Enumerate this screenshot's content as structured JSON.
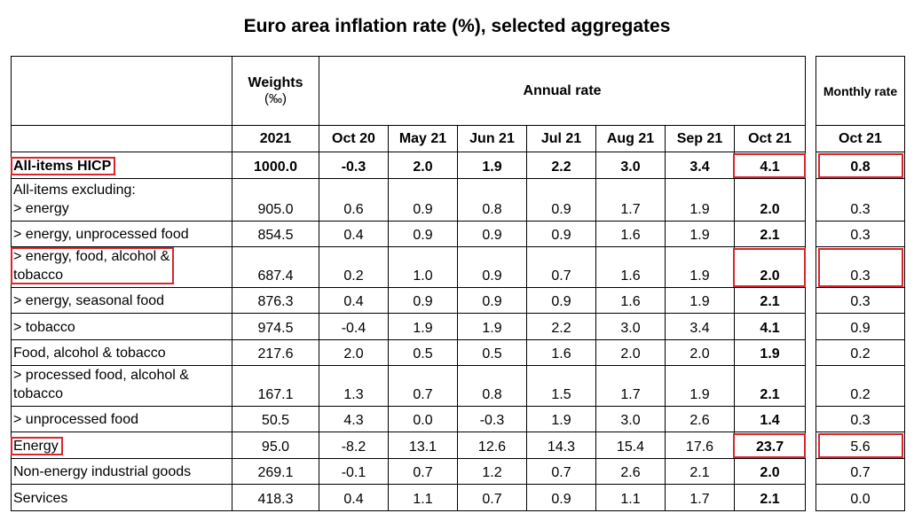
{
  "title": "Euro area inflation rate (%), selected aggregates",
  "header": {
    "weights_line1": "Weights",
    "weights_line2": "(‰)",
    "annual_rate": "Annual rate",
    "monthly_rate": "Monthly rate",
    "weights_year": "2021",
    "annual_periods": [
      "Oct 20",
      "May 21",
      "Jun 21",
      "Jul 21",
      "Aug 21",
      "Sep 21",
      "Oct 21"
    ],
    "monthly_period": "Oct 21"
  },
  "rows": [
    {
      "label_lines": [
        "All-items HICP"
      ],
      "weight": "1000.0",
      "annual": [
        "-0.3",
        "2.0",
        "1.9",
        "2.2",
        "3.0",
        "3.4",
        "4.1"
      ],
      "monthly": "0.8",
      "highlighted": true
    },
    {
      "label_lines": [
        "All-items excluding:",
        "> energy"
      ],
      "weight": "905.0",
      "annual": [
        "0.6",
        "0.9",
        "0.8",
        "0.9",
        "1.7",
        "1.9",
        "2.0"
      ],
      "monthly": "0.3"
    },
    {
      "label_lines": [
        "> energy, unprocessed food"
      ],
      "weight": "854.5",
      "annual": [
        "0.4",
        "0.9",
        "0.9",
        "0.9",
        "1.6",
        "1.9",
        "2.1"
      ],
      "monthly": "0.3"
    },
    {
      "label_lines": [
        "> energy, food, alcohol &",
        "tobacco"
      ],
      "weight": "687.4",
      "annual": [
        "0.2",
        "1.0",
        "0.9",
        "0.7",
        "1.6",
        "1.9",
        "2.0"
      ],
      "monthly": "0.3",
      "highlighted": true
    },
    {
      "label_lines": [
        "> energy, seasonal food"
      ],
      "weight": "876.3",
      "annual": [
        "0.4",
        "0.9",
        "0.9",
        "0.9",
        "1.6",
        "1.9",
        "2.1"
      ],
      "monthly": "0.3"
    },
    {
      "label_lines": [
        "> tobacco"
      ],
      "weight": "974.5",
      "annual": [
        "-0.4",
        "1.9",
        "1.9",
        "2.2",
        "3.0",
        "3.4",
        "4.1"
      ],
      "monthly": "0.9"
    },
    {
      "label_lines": [
        "Food, alcohol & tobacco"
      ],
      "weight": "217.6",
      "annual": [
        "2.0",
        "0.5",
        "0.5",
        "1.6",
        "2.0",
        "2.0",
        "1.9"
      ],
      "monthly": "0.2"
    },
    {
      "label_lines": [
        "> processed food, alcohol &",
        "tobacco"
      ],
      "weight": "167.1",
      "annual": [
        "1.3",
        "0.7",
        "0.8",
        "1.5",
        "1.7",
        "1.9",
        "2.1"
      ],
      "monthly": "0.2"
    },
    {
      "label_lines": [
        "> unprocessed food"
      ],
      "weight": "50.5",
      "annual": [
        "4.3",
        "0.0",
        "-0.3",
        "1.9",
        "3.0",
        "2.6",
        "1.4"
      ],
      "monthly": "0.3"
    },
    {
      "label_lines": [
        "Energy"
      ],
      "weight": "95.0",
      "annual": [
        "-8.2",
        "13.1",
        "12.6",
        "14.3",
        "15.4",
        "17.6",
        "23.7"
      ],
      "monthly": "5.6",
      "highlighted": true
    },
    {
      "label_lines": [
        "Non-energy industrial goods"
      ],
      "weight": "269.1",
      "annual": [
        "-0.1",
        "0.7",
        "1.2",
        "0.7",
        "2.6",
        "2.1",
        "2.0"
      ],
      "monthly": "0.7"
    },
    {
      "label_lines": [
        "Services"
      ],
      "weight": "418.3",
      "annual": [
        "0.4",
        "1.1",
        "0.7",
        "0.9",
        "1.1",
        "1.7",
        "2.1"
      ],
      "monthly": "0.0"
    }
  ],
  "highlight_color": "#d9262e"
}
